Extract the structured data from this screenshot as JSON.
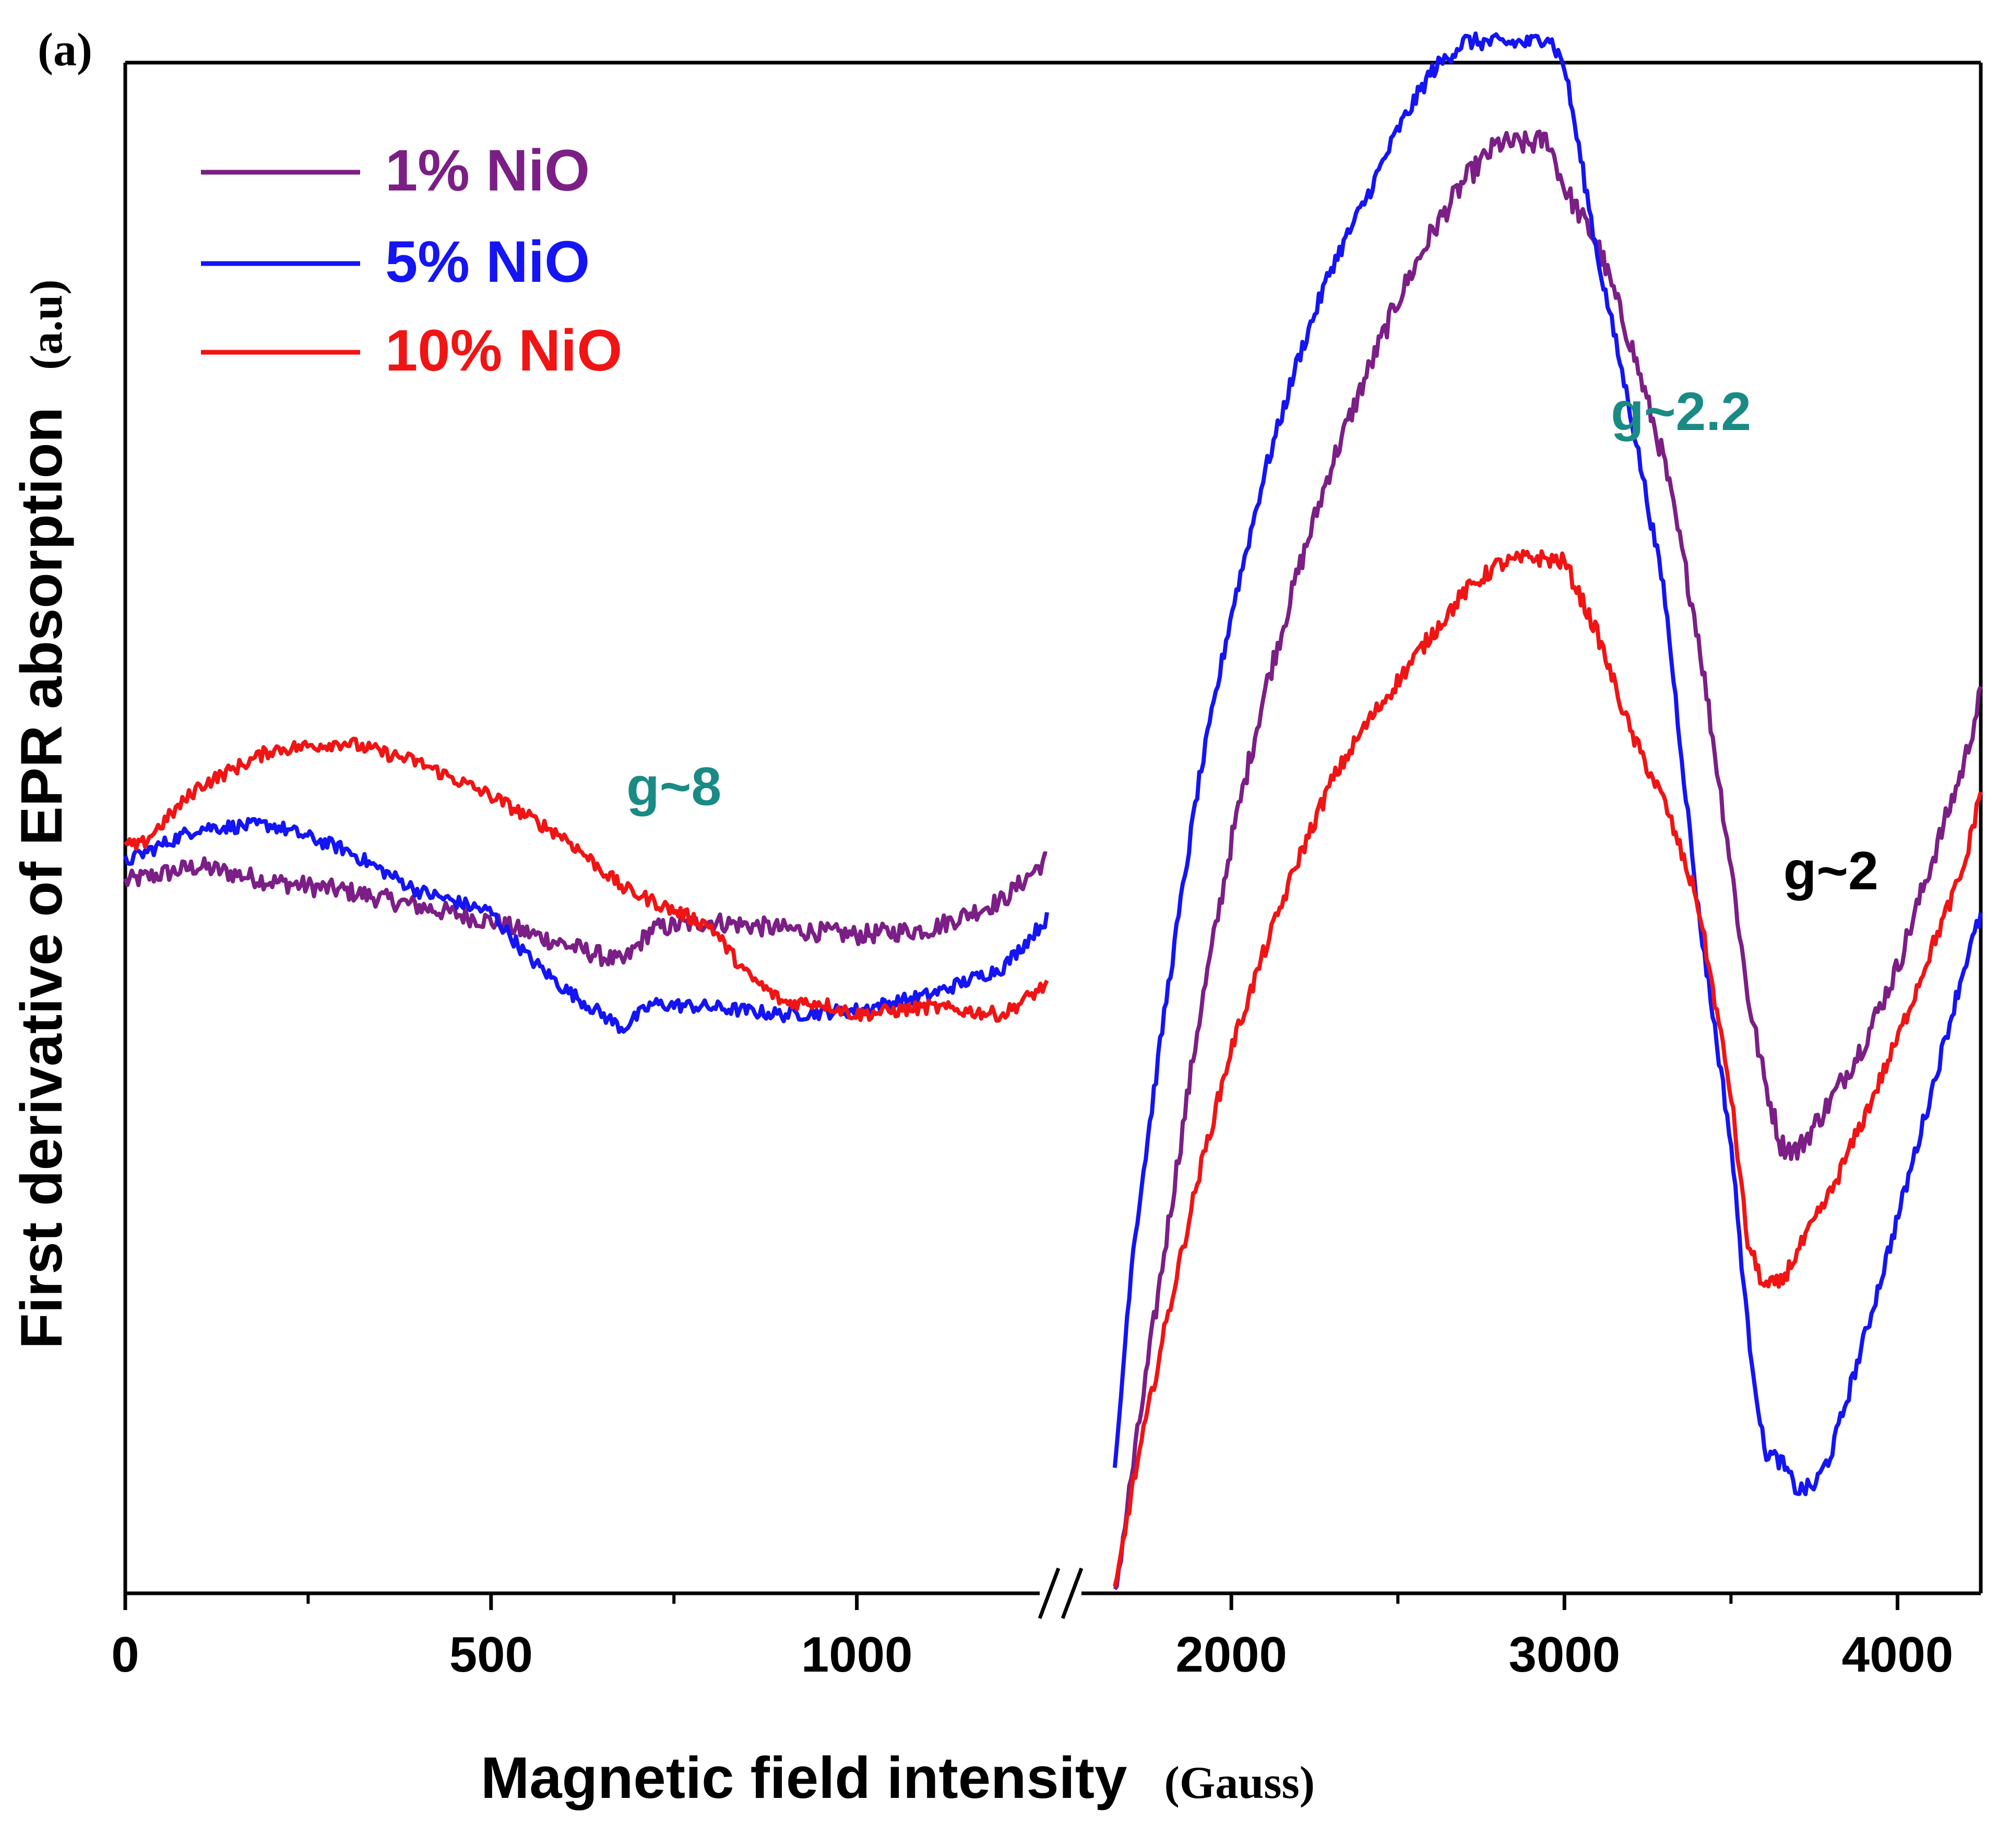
{
  "panel_label": "(a)",
  "colors": {
    "axis": "#000000",
    "series_1pct": "#7b1f86",
    "series_5pct": "#1414f5",
    "series_10pct": "#f01414",
    "annotation_teal": "#1a8a84",
    "annotation_black": "#000000"
  },
  "chart_data": {
    "type": "line",
    "title": "",
    "xlabel": "Magnetic field intensity",
    "xlabel_unit": "(Gauss)",
    "ylabel": "First derivative of EPR absorption",
    "ylabel_unit": "(a.u)",
    "y_units": "arbitrary",
    "ylim": [
      0,
      100
    ],
    "grid": false,
    "legend_position": "top-left",
    "axis_break": true,
    "segments": [
      {
        "name": "left",
        "xlim": [
          0,
          1250
        ]
      },
      {
        "name": "right",
        "xlim": [
          1550,
          4250
        ]
      }
    ],
    "x_ticks": [
      {
        "value": 0,
        "label": "0"
      },
      {
        "value": 500,
        "label": "500"
      },
      {
        "value": 1000,
        "label": "1000"
      },
      {
        "value": 2000,
        "label": "2000"
      },
      {
        "value": 3000,
        "label": "3000"
      },
      {
        "value": 4000,
        "label": "4000"
      }
    ],
    "x_minor_ticks": [
      250,
      750,
      2500,
      3500
    ],
    "series": [
      {
        "name": "1% NiO",
        "legend": "1% NiO",
        "color_key": "series_1pct",
        "segments": [
          {
            "x": [
              0,
              100,
              200,
              300,
              400,
              500,
              600,
              680,
              720,
              800,
              900,
              1000,
              1100,
              1200,
              1260
            ],
            "y": [
              46.5,
              47.5,
              46.5,
              45.9,
              44.9,
              43.9,
              42.4,
              41.2,
              43.4,
              43.9,
              43.4,
              43.0,
              43.4,
              45.3,
              48.0
            ]
          },
          {
            "x": [
              1650,
              1700,
              1800,
              1900,
              2000,
              2100,
              2200,
              2300,
              2400,
              2500,
              2600,
              2700,
              2800,
              2900,
              2950,
              3000,
              3100,
              3200,
              3300,
              3400,
              3500,
              3550,
              3600,
              3650,
              3700,
              3800,
              3900,
              4000,
              4100,
              4200,
              4250
            ],
            "y": [
              -0.3,
              7.6,
              22.5,
              37.1,
              49.1,
              58.9,
              66.7,
              73.7,
              79.3,
              84.5,
              88.8,
              92.3,
              94.7,
              94.7,
              95.0,
              91.8,
              88.1,
              81.6,
              73.9,
              62.8,
              47.6,
              39.1,
              33.6,
              29.3,
              28.9,
              32.2,
              36.0,
              40.9,
              47.6,
              54.2,
              58.8
            ]
          }
        ]
      },
      {
        "name": "5% NiO",
        "legend": "5% NiO",
        "color_key": "series_5pct",
        "segments": [
          {
            "x": [
              0,
              100,
              200,
              300,
              400,
              500,
              550,
              600,
              680,
              720,
              800,
              900,
              1000,
              1100,
              1200,
              1260
            ],
            "y": [
              47.8,
              50.0,
              50.2,
              48.6,
              45.9,
              44.5,
              41.6,
              39.5,
              36.9,
              38.5,
              38.3,
              37.8,
              38.1,
              39.1,
              40.9,
              44.1
            ]
          },
          {
            "x": [
              1650,
              1700,
              1800,
              1900,
              2000,
              2100,
              2200,
              2300,
              2400,
              2500,
              2600,
              2700,
              2800,
              2900,
              2950,
              3000,
              3100,
              3200,
              3300,
              3400,
              3500,
              3550,
              3600,
              3650,
              3700,
              3750,
              3800,
              3900,
              4000,
              4100,
              4200,
              4250
            ],
            "y": [
              7.8,
              21.6,
              38.1,
              52.7,
              64.0,
              73.2,
              80.6,
              86.6,
              90.9,
              95.6,
              99.4,
              101.4,
              101.3,
              101.3,
              101.8,
              99.8,
              87.3,
              77.0,
              65.4,
              44.9,
              29.4,
              17.4,
              9.3,
              8.6,
              6.7,
              7.0,
              9.1,
              16.6,
              24.5,
              32.6,
              40.9,
              44.3
            ]
          }
        ]
      },
      {
        "name": "10% NiO",
        "legend": "10% NiO",
        "color_key": "series_10pct",
        "segments": [
          {
            "x": [
              0,
              20,
              100,
              200,
              300,
              400,
              500,
              600,
              680,
              750,
              800,
              850,
              900,
              950,
              1000,
              1100,
              1200,
              1260
            ],
            "y": [
              48.9,
              48.8,
              52.7,
              55.1,
              55.6,
              54.3,
              52.1,
              49.4,
              46.1,
              44.6,
              43.6,
              40.4,
              38.6,
              38.6,
              37.8,
              38.3,
              37.8,
              39.8
            ]
          },
          {
            "x": [
              1650,
              1700,
              1800,
              1900,
              2000,
              2100,
              2200,
              2300,
              2400,
              2500,
              2600,
              2700,
              2800,
              2900,
              3000,
              3100,
              3200,
              3300,
              3400,
              3500,
              3550,
              3600,
              3650,
              3700,
              3800,
              3900,
              4000,
              4100,
              4200,
              4250
            ],
            "y": [
              -0.1,
              6.6,
              17.2,
              27.1,
              35.6,
              42.0,
              47.9,
              53.0,
              56.6,
              59.6,
              62.6,
              65.4,
              67.2,
              67.7,
              67.4,
              62.6,
              56.2,
              51.7,
              45.2,
              32.6,
              22.9,
              20.0,
              20.3,
              22.3,
              26.2,
              31.1,
              36.2,
              42.0,
              47.4,
              52.5
            ]
          }
        ]
      }
    ],
    "annotations": [
      {
        "text": "g~8",
        "x": 750,
        "y": 51.5,
        "color_key": "annotation_teal"
      },
      {
        "text": "g~2.2",
        "x": 3350,
        "y": 76.0,
        "color_key": "annotation_teal"
      },
      {
        "text": "g~2",
        "x": 3800,
        "y": 46.0,
        "color_key": "annotation_black"
      }
    ]
  }
}
